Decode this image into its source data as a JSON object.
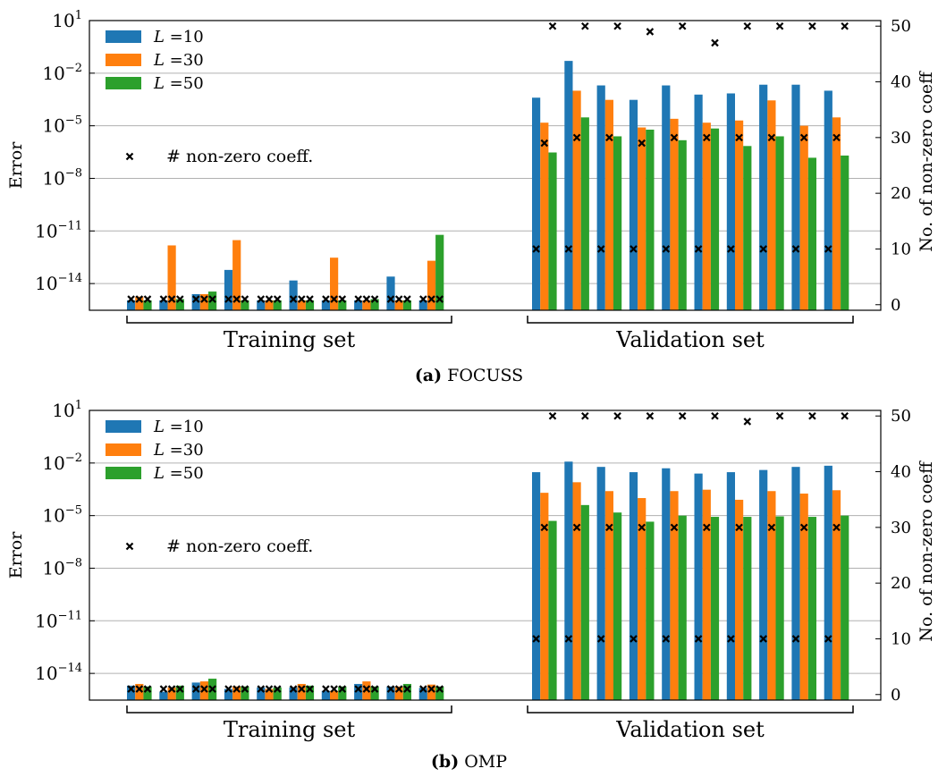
{
  "colors": {
    "L10": "#1f77b4",
    "L30": "#ff7f0e",
    "L50": "#2ca02c",
    "marker": "#000000",
    "grid": "#b0b0b0"
  },
  "chart_data": [
    {
      "type": "bar",
      "panel": "(a)",
      "caption": "FOCUSS",
      "ylabel": "Error",
      "y2label": "No. of non-zero coeff",
      "yscale": "log",
      "ylim": [
        3e-16,
        10
      ],
      "y2lim": [
        -1,
        51
      ],
      "yticks": [
        {
          "v": 10,
          "b": "10",
          "e": "1"
        },
        {
          "v": 0.01,
          "b": "10",
          "e": "−2"
        },
        {
          "v": 1e-05,
          "b": "10",
          "e": "−5"
        },
        {
          "v": 1e-08,
          "b": "10",
          "e": "−8"
        },
        {
          "v": 1e-11,
          "b": "10",
          "e": "−11"
        },
        {
          "v": 1e-14,
          "b": "10",
          "e": "−14"
        }
      ],
      "y2ticks": [
        "0",
        "10",
        "20",
        "30",
        "40",
        "50"
      ],
      "group_labels": [
        "Training set",
        "Validation set"
      ],
      "legend": {
        "entries": [
          {
            "pre": "L",
            "post": " =10"
          },
          {
            "pre": "L",
            "post": " =30"
          },
          {
            "pre": "L",
            "post": " =50"
          }
        ],
        "marker_label": "# non-zero coeff."
      },
      "series": [
        {
          "name": "L =10",
          "training": [
            1.1e-15,
            1.1e-15,
            2.5e-15,
            6e-14,
            1.1e-15,
            1.5e-14,
            1.1e-15,
            1.1e-15,
            2.5e-14,
            1.1e-15
          ],
          "validation": [
            0.0004,
            0.05,
            0.002,
            0.0003,
            0.002,
            0.0006,
            0.0007,
            0.0022,
            0.0022,
            0.001
          ]
        },
        {
          "name": "L =30",
          "training": [
            1.8e-15,
            1.5e-12,
            2.5e-15,
            3e-12,
            1.1e-15,
            1.1e-15,
            3e-13,
            1.1e-15,
            1.1e-15,
            2e-13
          ],
          "validation": [
            1.5e-05,
            0.001,
            0.0003,
            8e-06,
            2.5e-05,
            1.5e-05,
            2e-05,
            0.00028,
            1e-05,
            3e-05
          ]
        },
        {
          "name": "L =50",
          "training": [
            1.1e-15,
            1.3e-15,
            3.5e-15,
            1.1e-15,
            1.1e-15,
            1.1e-15,
            1.1e-15,
            1.3e-15,
            1.1e-15,
            6e-12
          ],
          "validation": [
            3e-07,
            3e-05,
            2.5e-06,
            6e-06,
            1.5e-06,
            7e-06,
            7e-07,
            2.5e-06,
            1.5e-07,
            2e-07
          ]
        }
      ],
      "nonzero_coeff": {
        "training": [
          [
            1,
            1,
            1
          ],
          [
            1,
            1,
            1
          ],
          [
            1,
            1,
            1
          ],
          [
            1,
            1,
            1
          ],
          [
            1,
            1,
            1
          ],
          [
            1,
            1,
            1
          ],
          [
            1,
            1,
            1
          ],
          [
            1,
            1,
            1
          ],
          [
            1,
            1,
            1
          ],
          [
            1,
            1,
            1
          ]
        ],
        "validation": [
          [
            10,
            29,
            50
          ],
          [
            10,
            30,
            50
          ],
          [
            10,
            30,
            50
          ],
          [
            10,
            29,
            49
          ],
          [
            10,
            30,
            50
          ],
          [
            10,
            30,
            47
          ],
          [
            10,
            30,
            50
          ],
          [
            10,
            30,
            50
          ],
          [
            10,
            30,
            50
          ],
          [
            10,
            30,
            50
          ]
        ]
      }
    },
    {
      "type": "bar",
      "panel": "(b)",
      "caption": "OMP",
      "ylabel": "Error",
      "y2label": "No. of non-zero coeff",
      "yscale": "log",
      "ylim": [
        3e-16,
        10
      ],
      "y2lim": [
        -1,
        51
      ],
      "yticks": [
        {
          "v": 10,
          "b": "10",
          "e": "1"
        },
        {
          "v": 0.01,
          "b": "10",
          "e": "−2"
        },
        {
          "v": 1e-05,
          "b": "10",
          "e": "−5"
        },
        {
          "v": 1e-08,
          "b": "10",
          "e": "−8"
        },
        {
          "v": 1e-11,
          "b": "10",
          "e": "−11"
        },
        {
          "v": 1e-14,
          "b": "10",
          "e": "−14"
        }
      ],
      "y2ticks": [
        "0",
        "10",
        "20",
        "30",
        "40",
        "50"
      ],
      "group_labels": [
        "Training set",
        "Validation set"
      ],
      "legend": {
        "entries": [
          {
            "pre": "L",
            "post": " =10"
          },
          {
            "pre": "L",
            "post": " =30"
          },
          {
            "pre": "L",
            "post": " =50"
          }
        ],
        "marker_label": "# non-zero coeff."
      },
      "series": [
        {
          "name": "L =10",
          "training": [
            2e-15,
            9e-16,
            3e-15,
            1.3e-15,
            1.6e-15,
            1.6e-15,
            1e-15,
            2.5e-15,
            1.8e-15,
            1.5e-15
          ],
          "validation": [
            0.003,
            0.012,
            0.006,
            0.003,
            0.005,
            0.0025,
            0.003,
            0.004,
            0.006,
            0.007
          ]
        },
        {
          "name": "L =30",
          "training": [
            2.5e-15,
            1.6e-15,
            3.5e-15,
            1.8e-15,
            1.3e-15,
            2.5e-15,
            1e-15,
            3.5e-15,
            1.8e-15,
            2.3e-15
          ],
          "validation": [
            0.0002,
            0.0008,
            0.00025,
            0.0001,
            0.00025,
            0.0003,
            8e-05,
            0.00025,
            0.00018,
            0.00028
          ]
        },
        {
          "name": "L =50",
          "training": [
            1.8e-15,
            2e-15,
            5e-15,
            1.8e-15,
            1.6e-15,
            2e-15,
            1.8e-15,
            1.8e-15,
            2.5e-15,
            1.8e-15
          ],
          "validation": [
            5e-06,
            4e-05,
            1.5e-05,
            4.5e-06,
            1e-05,
            8.5e-06,
            8.5e-06,
            9e-06,
            8.5e-06,
            1e-05
          ]
        }
      ],
      "nonzero_coeff": {
        "training": [
          [
            1,
            1,
            1
          ],
          [
            1,
            1,
            1
          ],
          [
            1,
            1,
            1
          ],
          [
            1,
            1,
            1
          ],
          [
            1,
            1,
            1
          ],
          [
            1,
            1,
            1
          ],
          [
            1,
            1,
            1
          ],
          [
            1,
            1,
            1
          ],
          [
            1,
            1,
            1
          ],
          [
            1,
            1,
            1
          ]
        ],
        "validation": [
          [
            10,
            30,
            50
          ],
          [
            10,
            30,
            50
          ],
          [
            10,
            30,
            50
          ],
          [
            10,
            30,
            50
          ],
          [
            10,
            30,
            50
          ],
          [
            10,
            30,
            50
          ],
          [
            10,
            30,
            49
          ],
          [
            10,
            30,
            50
          ],
          [
            10,
            30,
            50
          ],
          [
            10,
            30,
            50
          ]
        ]
      }
    }
  ]
}
